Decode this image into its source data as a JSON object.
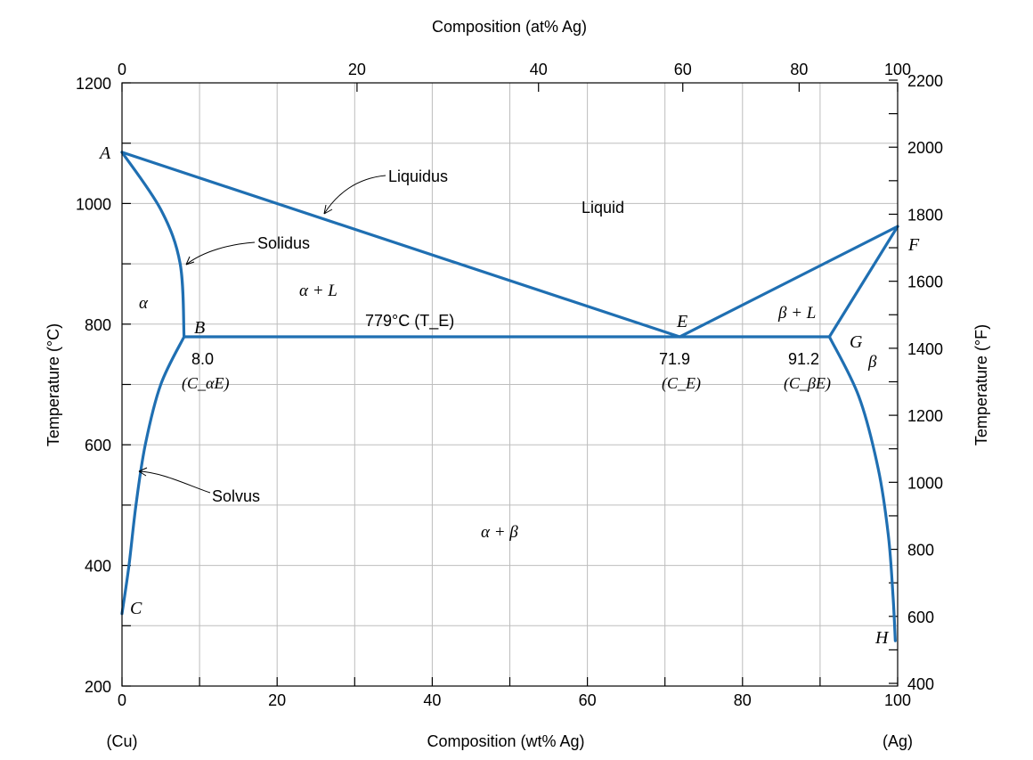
{
  "chart_data": {
    "type": "line",
    "title": "",
    "xlabel": "Composition (wt% Ag)",
    "xlabel_top": "Composition (at% Ag)",
    "ylabel": "Temperature (°C)",
    "ylabel_right": "Temperature (°F)",
    "xlim": [
      0,
      100
    ],
    "ylim": [
      200,
      1200
    ],
    "y2lim": [
      392,
      2192
    ],
    "grid": true,
    "x_ticks": [
      "0",
      "20",
      "40",
      "60",
      "80",
      "100"
    ],
    "x_top_ticks": [
      {
        "value": 0,
        "label": "0"
      },
      {
        "value": 30.3,
        "label": "20"
      },
      {
        "value": 53.7,
        "label": "40"
      },
      {
        "value": 72.3,
        "label": "60"
      },
      {
        "value": 87.3,
        "label": "80"
      },
      {
        "value": 100,
        "label": "100"
      }
    ],
    "y_ticks": [
      "200",
      "400",
      "600",
      "800",
      "1000",
      "1200"
    ],
    "y2_ticks": [
      "400",
      "600",
      "800",
      "1000",
      "1200",
      "1400",
      "1600",
      "1800",
      "2000",
      "2200"
    ],
    "x_end_labels": {
      "left": "(Cu)",
      "right": "(Ag)"
    },
    "series": [
      {
        "name": "Liquidus",
        "points": [
          [
            0,
            1085
          ],
          [
            71.9,
            779
          ],
          [
            100,
            962
          ]
        ]
      },
      {
        "name": "Solidus",
        "points": [
          [
            0,
            1085
          ],
          [
            5,
            990
          ],
          [
            7.5,
            900
          ],
          [
            8.0,
            779
          ]
        ]
      },
      {
        "name": "Solvus",
        "points": [
          [
            8.0,
            779
          ],
          [
            5,
            700
          ],
          [
            3,
            600
          ],
          [
            1.8,
            500
          ],
          [
            0.9,
            400
          ],
          [
            0,
            320
          ]
        ]
      },
      {
        "name": "",
        "points": [
          [
            100,
            962
          ],
          [
            91.2,
            779
          ]
        ]
      },
      {
        "name": "",
        "points": [
          [
            91.2,
            779
          ],
          [
            95,
            680
          ],
          [
            97.5,
            560
          ],
          [
            98.8,
            450
          ],
          [
            99.4,
            350
          ],
          [
            99.7,
            275
          ]
        ]
      },
      {
        "name": "",
        "points": [
          [
            8.0,
            779
          ],
          [
            91.2,
            779
          ]
        ]
      }
    ],
    "point_labels": [
      {
        "name": "A",
        "x": 0,
        "y": 1085
      },
      {
        "name": "B",
        "x": 8.0,
        "y": 779
      },
      {
        "name": "C",
        "x": 0,
        "y": 320
      },
      {
        "name": "E",
        "x": 71.9,
        "y": 779
      },
      {
        "name": "F",
        "x": 100,
        "y": 962
      },
      {
        "name": "G",
        "x": 91.2,
        "y": 779
      },
      {
        "name": "H",
        "x": 99.7,
        "y": 275
      }
    ],
    "regions": {
      "liquid": "Liquid",
      "alpha": "α",
      "beta": "β",
      "alpha_l": "α + L",
      "beta_l": "β + L",
      "alpha_beta": "α + β"
    },
    "eutectic_label": "779°C (T_E)",
    "annotations": {
      "c_alpha_value": "8.0",
      "c_alpha_name": "(C_αE)",
      "c_e_value": "71.9",
      "c_e_name": "(C_E)",
      "c_beta_value": "91.2",
      "c_beta_name": "(C_βE)"
    },
    "curve_color": "#1f6fb2",
    "grid_color": "#bdbdbd"
  }
}
